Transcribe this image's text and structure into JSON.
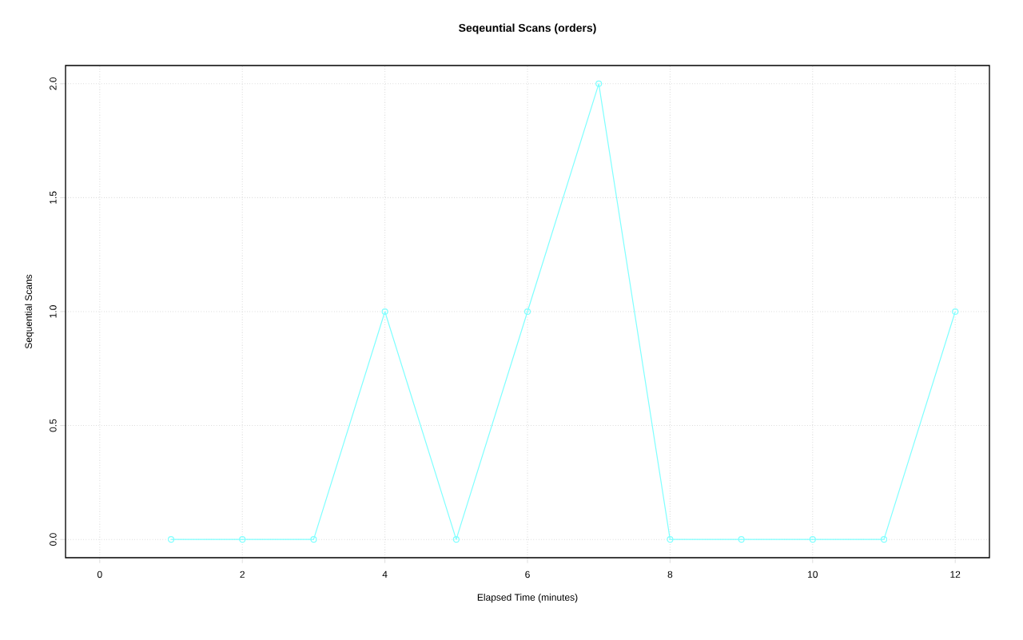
{
  "chart_data": {
    "type": "line",
    "title": "Seqeuntial Scans (orders)",
    "xlabel": "Elapsed Time (minutes)",
    "ylabel": "Sequential Scans",
    "x": [
      1,
      2,
      3,
      4,
      5,
      6,
      7,
      8,
      9,
      10,
      11,
      12
    ],
    "values": [
      0,
      0,
      0,
      1,
      0,
      1,
      2,
      0,
      0,
      0,
      0,
      1
    ],
    "color": "#7fffff",
    "xlim": [
      -0.48,
      12.48
    ],
    "ylim": [
      -0.08,
      2.08
    ],
    "xticks": [
      0,
      2,
      4,
      6,
      8,
      10,
      12
    ],
    "yticks": [
      {
        "value": 0,
        "label": "0.0"
      },
      {
        "value": 0.5,
        "label": "0.5"
      },
      {
        "value": 1,
        "label": "1.0"
      },
      {
        "value": 1.5,
        "label": "1.5"
      },
      {
        "value": 2,
        "label": "2.0"
      }
    ],
    "grid": true,
    "marker": "circle",
    "line_style": "solid"
  }
}
